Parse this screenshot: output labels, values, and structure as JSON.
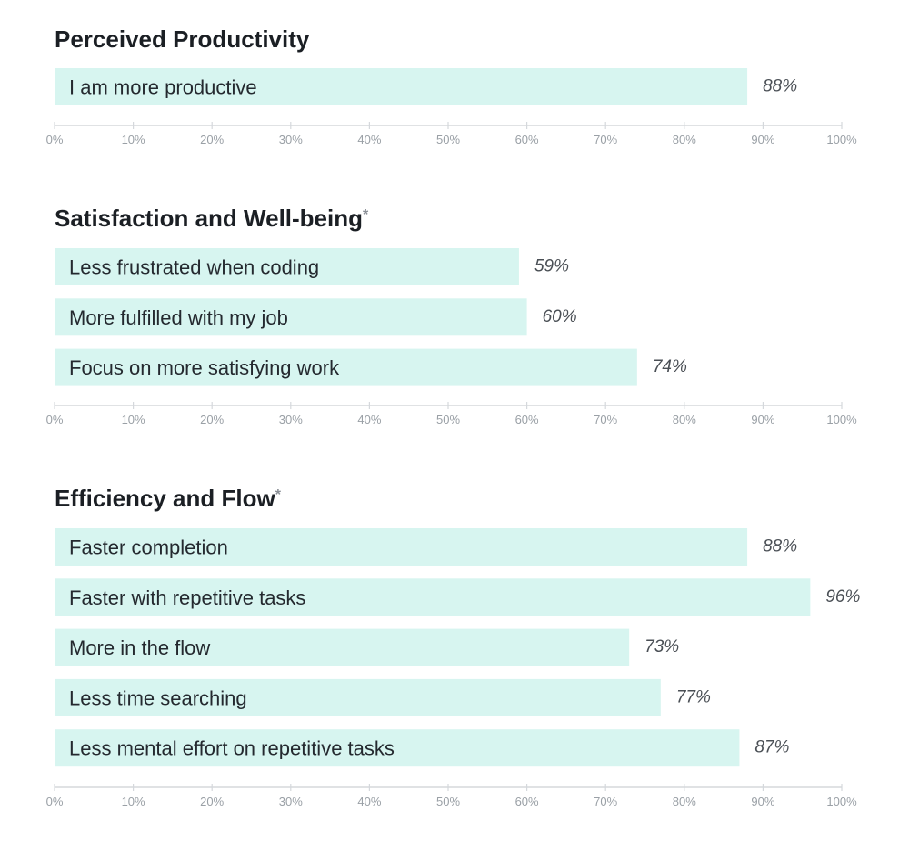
{
  "chart_data": [
    {
      "type": "bar",
      "orientation": "horizontal",
      "title": "Perceived Productivity",
      "title_marker": "",
      "categories": [
        "I am more productive"
      ],
      "values": [
        88
      ],
      "value_labels": [
        "88%"
      ],
      "xlim": [
        0,
        100
      ],
      "tick_labels": [
        "0%",
        "10%",
        "20%",
        "30%",
        "40%",
        "50%",
        "60%",
        "70%",
        "80%",
        "90%",
        "100%"
      ],
      "color": "#d7f5f0"
    },
    {
      "type": "bar",
      "orientation": "horizontal",
      "title": "Satisfaction and Well-being",
      "title_marker": "*",
      "categories": [
        "Less frustrated when coding",
        "More fulfilled with my job",
        "Focus on more satisfying work"
      ],
      "values": [
        59,
        60,
        74
      ],
      "value_labels": [
        "59%",
        "60%",
        "74%"
      ],
      "xlim": [
        0,
        100
      ],
      "tick_labels": [
        "0%",
        "10%",
        "20%",
        "30%",
        "40%",
        "50%",
        "60%",
        "70%",
        "80%",
        "90%",
        "100%"
      ],
      "color": "#d7f5f0"
    },
    {
      "type": "bar",
      "orientation": "horizontal",
      "title": "Efficiency and Flow",
      "title_marker": "*",
      "categories": [
        "Faster completion",
        "Faster with repetitive tasks",
        "More in the flow",
        "Less time searching",
        "Less mental effort on repetitive tasks"
      ],
      "values": [
        88,
        96,
        73,
        77,
        87
      ],
      "value_labels": [
        "88%",
        "96%",
        "73%",
        "77%",
        "87%"
      ],
      "xlim": [
        0,
        100
      ],
      "tick_labels": [
        "0%",
        "10%",
        "20%",
        "30%",
        "40%",
        "50%",
        "60%",
        "70%",
        "80%",
        "90%",
        "100%"
      ],
      "color": "#d7f5f0"
    }
  ]
}
